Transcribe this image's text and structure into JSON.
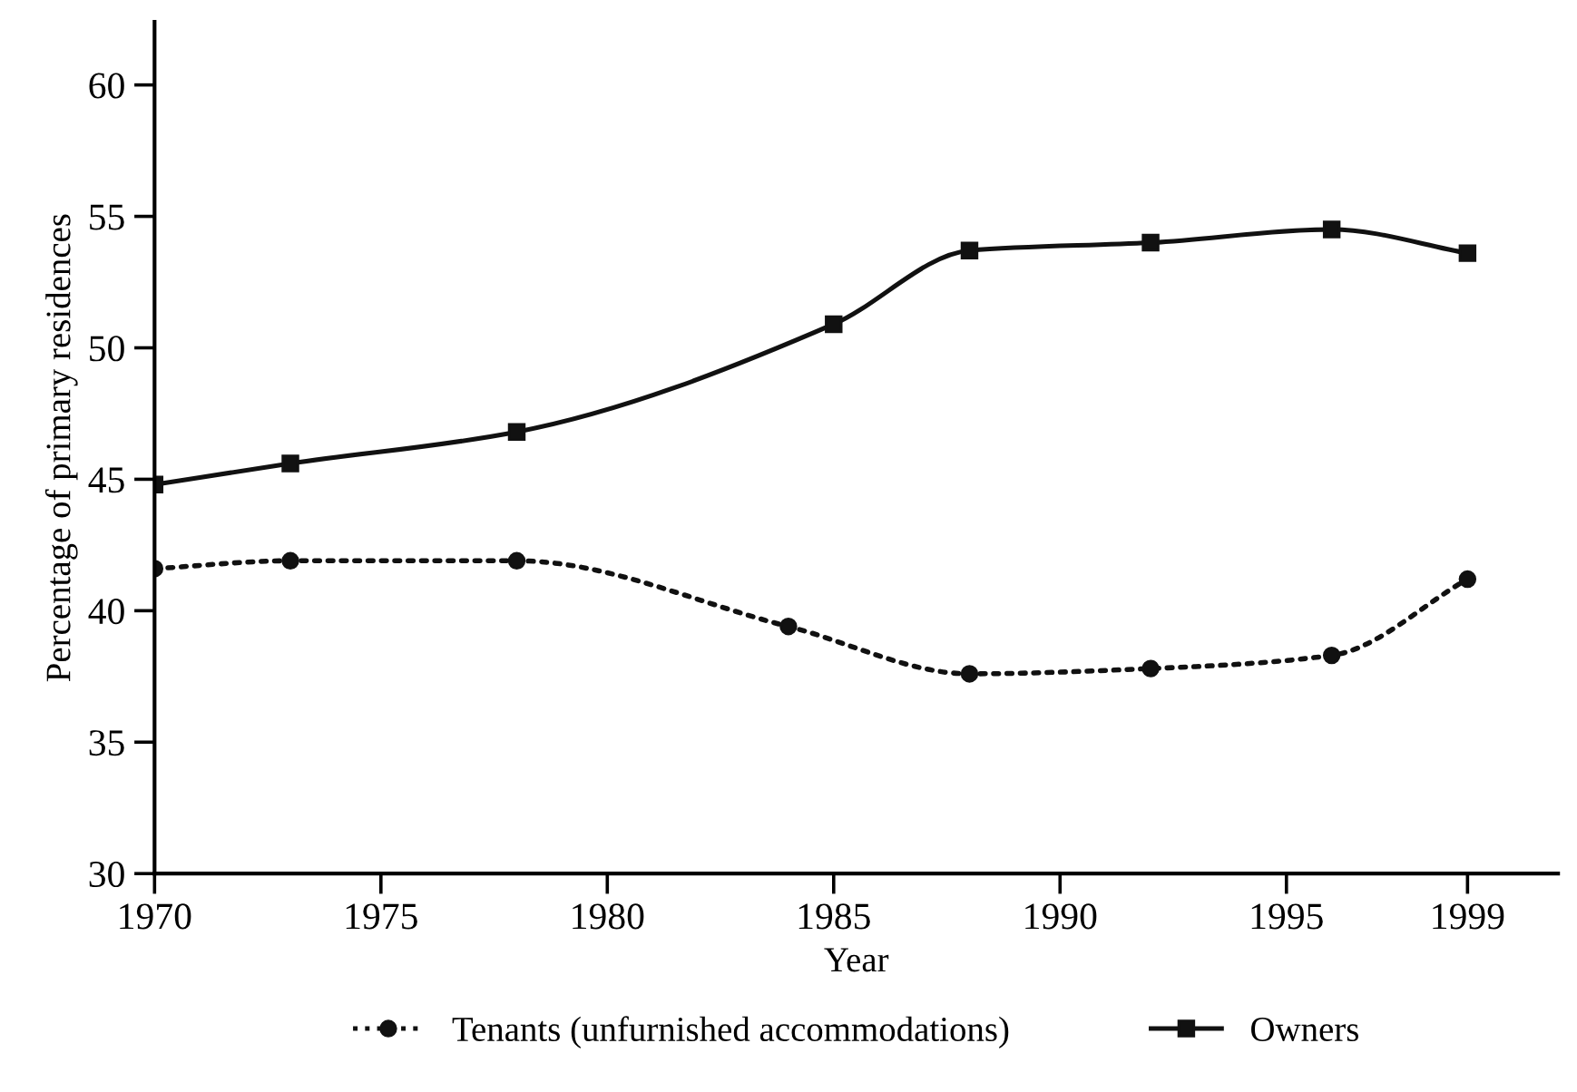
{
  "chart_data": {
    "type": "line",
    "xlabel": "Year",
    "ylabel": "Percentage of primary residences",
    "xlim": [
      1970,
      2001
    ],
    "xticks": [
      1970,
      1975,
      1980,
      1985,
      1990,
      1995,
      1999
    ],
    "ylim": [
      30,
      62.4
    ],
    "yticks": [
      30,
      35,
      40,
      45,
      50,
      55,
      60
    ],
    "grid": false,
    "legend": "bottom",
    "series": [
      {
        "name": "Tenants (unfurnished accommodations)",
        "color": "#111111",
        "marker": "circle",
        "line_style": "dotted",
        "x": [
          1970,
          1973,
          1978,
          1984,
          1988,
          1992,
          1996,
          1999
        ],
        "values": [
          41.6,
          41.9,
          41.9,
          39.4,
          37.6,
          37.8,
          38.3,
          41.2
        ]
      },
      {
        "name": "Owners",
        "color": "#111111",
        "marker": "square",
        "line_style": "solid",
        "x": [
          1970,
          1973,
          1978,
          1985,
          1988,
          1992,
          1996,
          1999
        ],
        "values": [
          44.8,
          45.6,
          46.8,
          50.9,
          53.7,
          54.0,
          54.5,
          53.6
        ]
      }
    ]
  }
}
